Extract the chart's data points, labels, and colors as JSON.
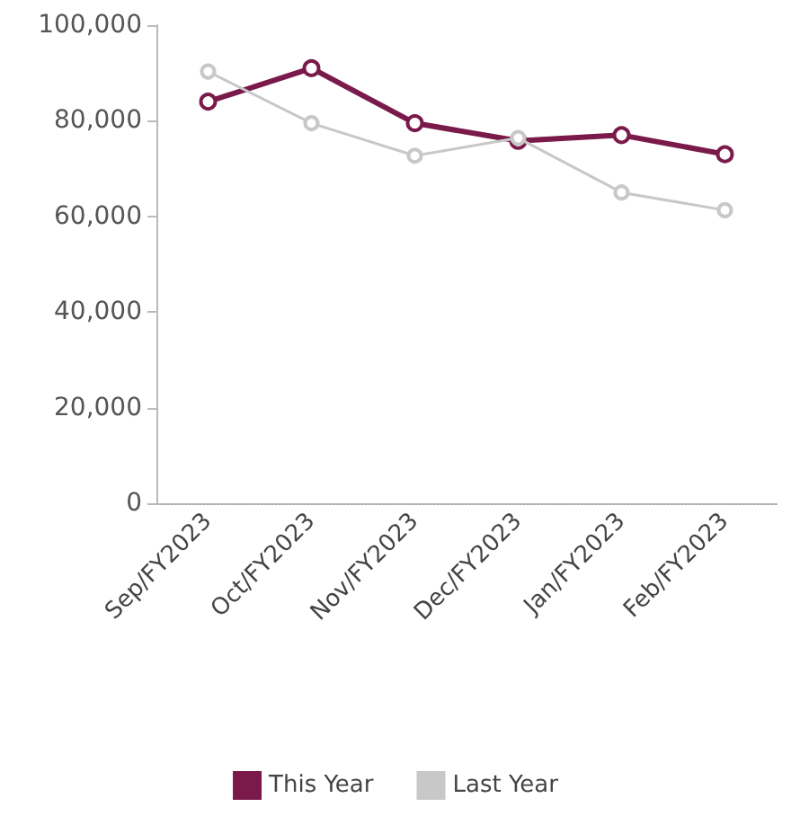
{
  "chart_data": {
    "type": "line",
    "categories": [
      "Sep/FY2023",
      "Oct/FY2023",
      "Nov/FY2023",
      "Dec/FY2023",
      "Jan/FY2023",
      "Feb/FY2023"
    ],
    "series": [
      {
        "name": "This Year",
        "color": "#7a1a4a",
        "values": [
          84000,
          91000,
          79500,
          75800,
          77000,
          73000
        ]
      },
      {
        "name": "Last Year",
        "color": "#c8c8c8",
        "values": [
          90300,
          79500,
          72700,
          76400,
          65000,
          61300
        ]
      }
    ],
    "ylim": [
      0,
      100000
    ],
    "yticks": [
      {
        "value": 0,
        "label": "0"
      },
      {
        "value": 20000,
        "label": "20,000"
      },
      {
        "value": 40000,
        "label": "40,000"
      },
      {
        "value": 60000,
        "label": "60,000"
      },
      {
        "value": 80000,
        "label": "80,000"
      },
      {
        "value": 100000,
        "label": "100,000"
      }
    ],
    "grid": false,
    "legend": "bottom",
    "marker": "circle",
    "line_style": "solid"
  }
}
